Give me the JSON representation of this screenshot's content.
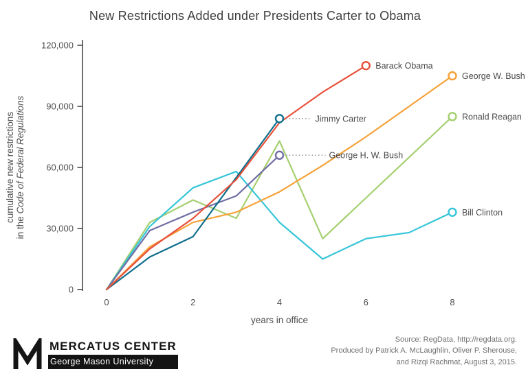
{
  "chart_data": {
    "type": "line",
    "title": "New Restrictions Added under Presidents Carter to Obama",
    "xlabel": "years in office",
    "ylabel_line1": "cumulative new restrictions",
    "ylabel_line2_prefix": "in the ",
    "ylabel_line2_italic": "Code of Federal Regulations",
    "xlim": [
      0,
      8
    ],
    "ylim": [
      0,
      120000
    ],
    "x_ticks": [
      0,
      2,
      4,
      6,
      8
    ],
    "y_ticks": [
      {
        "value": 0,
        "label": "0"
      },
      {
        "value": 30000,
        "label": "30,000"
      },
      {
        "value": 60000,
        "label": "60,000"
      },
      {
        "value": 90000,
        "label": "90,000"
      },
      {
        "value": 120000,
        "label": "120,000"
      }
    ],
    "grid": false,
    "legend_position": "end-of-line-labels",
    "series": [
      {
        "name": "Ronald Reagan",
        "color": "#a5cf70",
        "values": [
          0,
          33000,
          44000,
          35000,
          73000,
          25000,
          45000,
          65000,
          85000
        ]
      },
      {
        "name": "Bill Clinton",
        "color": "#35c5d8",
        "values": [
          0,
          31000,
          50000,
          58000,
          33000,
          15000,
          25000,
          28000,
          38000
        ]
      },
      {
        "name": "George H. W. Bush",
        "color": "#6f6da4",
        "values": [
          0,
          29000,
          38000,
          46000,
          66000
        ],
        "label_dx": 72
      },
      {
        "name": "George W. Bush",
        "color": "#f6a138",
        "values": [
          0,
          21000,
          33000,
          38000,
          48000,
          61000,
          75000,
          90000,
          105000
        ]
      },
      {
        "name": "Jimmy Carter",
        "color": "#0e6e8c",
        "values": [
          0,
          16000,
          26000,
          55000,
          84000
        ],
        "label_dx": 52
      },
      {
        "name": "Barack Obama",
        "color": "#e8503a",
        "values": [
          0,
          20000,
          35000,
          54000,
          82000,
          97000,
          110000
        ]
      }
    ]
  },
  "footer": {
    "logo_primary": "MERCATUS CENTER",
    "logo_secondary": "George Mason University",
    "source_lines": [
      "Source: RegData, http://regdata.org.",
      "Produced by Patrick A. McLaughlin, Oliver P. Sherouse,",
      "and Rizqi Rachmat, August 3, 2015."
    ]
  }
}
